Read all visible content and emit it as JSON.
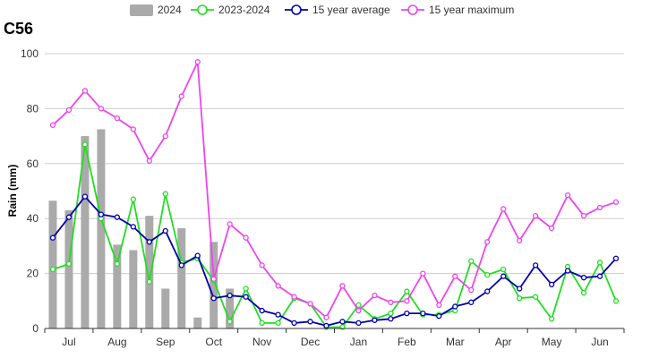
{
  "chart_data": {
    "type": "bar+line",
    "title": "C56",
    "ylabel": "Rain (mm)",
    "ylim": [
      0,
      100
    ],
    "yticks": [
      0,
      20,
      40,
      60,
      80,
      100
    ],
    "grid": true,
    "legend_position": "top",
    "month_labels": [
      "Jul",
      "Aug",
      "Sep",
      "Oct",
      "Nov",
      "Dec",
      "Jan",
      "Feb",
      "Mar",
      "Apr",
      "May",
      "Jun"
    ],
    "bars": {
      "name": "2024",
      "color": "#aaaaaa",
      "values": [
        46.5,
        43,
        70,
        72.5,
        30.5,
        28.5,
        41,
        14.5,
        36.5,
        4,
        31.5,
        14.5
      ]
    },
    "series": [
      {
        "name": "2023-2024",
        "color": "#22dd22",
        "values": [
          21.5,
          23.5,
          67,
          40,
          23.5,
          47,
          17,
          49,
          24,
          25.5,
          17.5,
          2.5,
          14.5,
          2,
          2,
          11,
          9,
          0.5,
          0.5,
          8.5,
          3.5,
          5.5,
          13.5,
          5,
          5,
          6.5,
          24.5,
          19.5,
          21.5,
          11,
          11.5,
          3.5,
          22.5,
          13,
          24,
          10
        ]
      },
      {
        "name": "15 year average",
        "color": "#0000aa",
        "values": [
          33,
          40.5,
          48,
          41.5,
          40.5,
          37,
          31.5,
          35.5,
          23,
          26.5,
          11,
          12,
          11.5,
          6.5,
          5,
          2,
          2.5,
          1,
          2.5,
          2,
          3,
          3.5,
          5.5,
          5.5,
          4.5,
          8,
          9.5,
          13.5,
          19,
          14.5,
          23,
          16,
          21,
          18.5,
          19,
          25.5
        ]
      },
      {
        "name": "15 year maximum",
        "color": "#ee44ee",
        "values": [
          74,
          79.5,
          86.5,
          80,
          76.5,
          72.5,
          61,
          70,
          84.5,
          97,
          18,
          38,
          33,
          23,
          15.5,
          11.5,
          9,
          4,
          15.5,
          6.5,
          12,
          9.5,
          10,
          20,
          8.5,
          19,
          14,
          31.5,
          43.5,
          32,
          41,
          36.5,
          48.5,
          41,
          44,
          46
        ]
      }
    ]
  }
}
